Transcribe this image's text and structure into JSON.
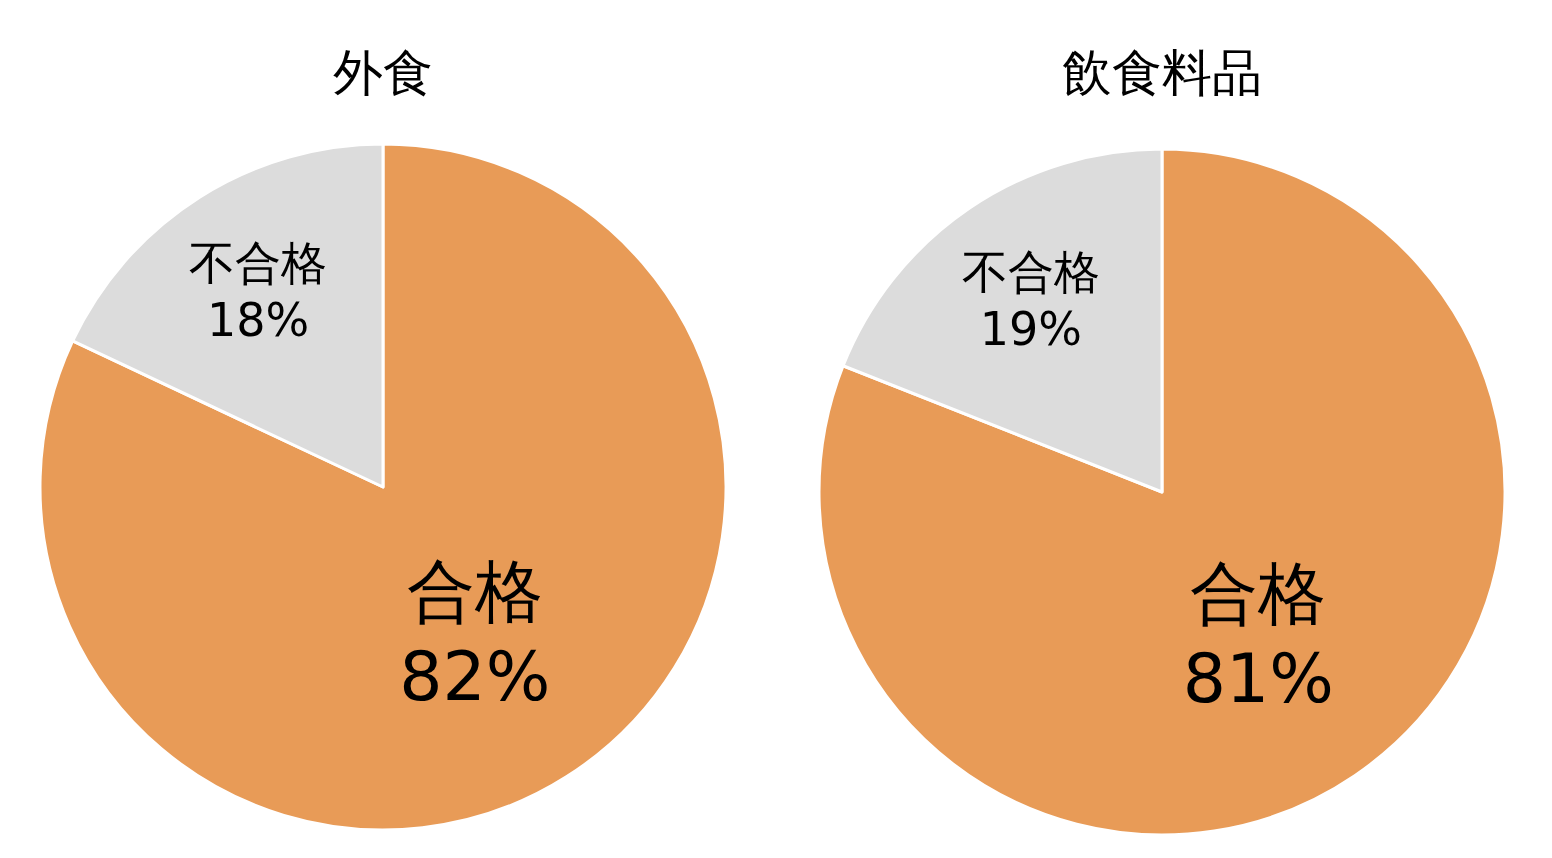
{
  "chart_data": [
    {
      "type": "pie",
      "title": "外食",
      "categories": [
        "合格",
        "不合格"
      ],
      "values": [
        82,
        18
      ],
      "colors": [
        "#e89b57",
        "#dcdcdc"
      ],
      "value_labels": [
        "82%",
        "18%"
      ]
    },
    {
      "type": "pie",
      "title": "飲食料品",
      "categories": [
        "合格",
        "不合格"
      ],
      "values": [
        81,
        19
      ],
      "colors": [
        "#e89b57",
        "#dcdcdc"
      ],
      "value_labels": [
        "81%",
        "19%"
      ]
    }
  ]
}
